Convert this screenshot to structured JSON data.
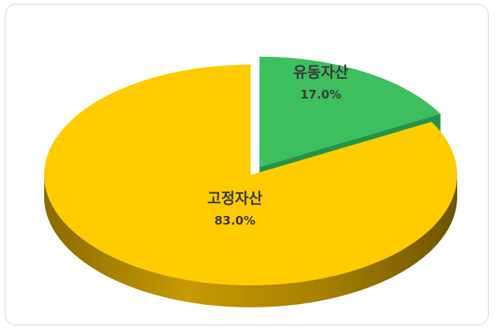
{
  "chart_data": {
    "type": "pie",
    "style": "3d-exploded",
    "title": "",
    "legend": "none",
    "slices": [
      {
        "label": "유동자산",
        "value": 17.0,
        "display": "17.0%",
        "color": "#3dbf5f",
        "side_color": "#1f8a3f"
      },
      {
        "label": "고정자산",
        "value": 83.0,
        "display": "83.0%",
        "color": "#ffcc00",
        "side_color": "#b08a00"
      }
    ]
  }
}
